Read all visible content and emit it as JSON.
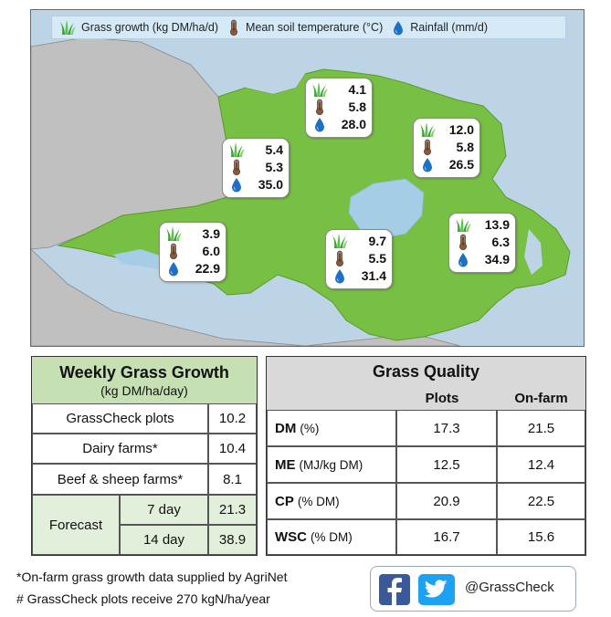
{
  "map": {
    "legend": {
      "grass": "Grass growth (kg DM/ha/d)",
      "temp": "Mean soil temperature (°C)",
      "rain": "Rainfall (mm/d)"
    },
    "stations": [
      {
        "growth": "4.1",
        "temp": "5.8",
        "rain": "28.0"
      },
      {
        "growth": "12.0",
        "temp": "5.8",
        "rain": "26.5"
      },
      {
        "growth": "5.4",
        "temp": "5.3",
        "rain": "35.0"
      },
      {
        "growth": "3.9",
        "temp": "6.0",
        "rain": "22.9"
      },
      {
        "growth": "9.7",
        "temp": "5.5",
        "rain": "31.4"
      },
      {
        "growth": "13.9",
        "temp": "6.3",
        "rain": "34.9"
      }
    ],
    "colors": {
      "land": "#78c043",
      "sea": "#bcd4e6",
      "border_land": "#c0c0c0",
      "lough": "#a6cde6"
    }
  },
  "growth_table": {
    "title": "Weekly Grass Growth",
    "subtitle": "(kg DM/ha/day)",
    "rows": [
      {
        "label": "GrassCheck plots",
        "value": "10.2"
      },
      {
        "label": "Dairy farms*",
        "value": "10.4"
      },
      {
        "label": "Beef & sheep farms*",
        "value": "8.1"
      }
    ],
    "forecast": {
      "label": "Forecast",
      "items": [
        {
          "label": "7 day",
          "value": "21.3"
        },
        {
          "label": "14 day",
          "value": "38.9"
        }
      ]
    }
  },
  "quality_table": {
    "title": "Grass Quality",
    "col_plots": "Plots",
    "col_farm": "On-farm",
    "rows": [
      {
        "name": "DM",
        "unit": "(%)",
        "plots": "17.3",
        "farm": "21.5"
      },
      {
        "name": "ME",
        "unit": "(MJ/kg DM)",
        "plots": "12.5",
        "farm": "12.4"
      },
      {
        "name": "CP",
        "unit": "(% DM)",
        "plots": "20.9",
        "farm": "22.5"
      },
      {
        "name": "WSC",
        "unit": "(% DM)",
        "plots": "16.7",
        "farm": "15.6"
      }
    ]
  },
  "footnotes": {
    "note1": "*On-farm grass growth data supplied by AgriNet",
    "note2": "# GrassCheck plots receive 270 kgN/ha/year"
  },
  "social": {
    "handle": "@GrassCheck",
    "icons": [
      "facebook-icon",
      "twitter-icon"
    ]
  }
}
